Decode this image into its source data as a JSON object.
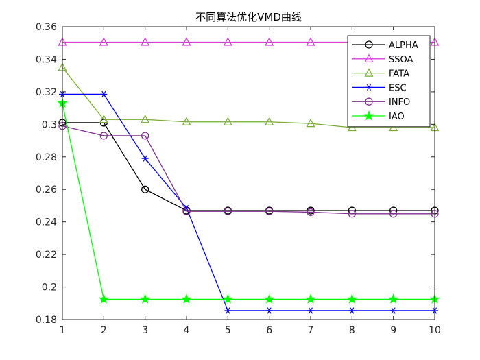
{
  "chart_data": {
    "type": "line",
    "title": "不同算法优化VMD曲线",
    "xlabel": "",
    "ylabel": "",
    "xlim": [
      1,
      10
    ],
    "ylim": [
      0.18,
      0.36
    ],
    "x": [
      1,
      2,
      3,
      4,
      5,
      6,
      7,
      8,
      9,
      10
    ],
    "xticks": [
      "1",
      "2",
      "3",
      "4",
      "5",
      "6",
      "7",
      "8",
      "9",
      "10"
    ],
    "yticks": [
      "0.18",
      "0.2",
      "0.22",
      "0.24",
      "0.26",
      "0.28",
      "0.3",
      "0.32",
      "0.34",
      "0.36"
    ],
    "grid": false,
    "legend_position": "top-right",
    "series": [
      {
        "name": "ALPHA",
        "color": "#000000",
        "marker": "circle",
        "values": [
          0.301,
          0.301,
          0.26,
          0.247,
          0.247,
          0.247,
          0.247,
          0.247,
          0.247,
          0.247
        ]
      },
      {
        "name": "SSOA",
        "color": "#d63fd6",
        "marker": "triangle",
        "values": [
          0.3505,
          0.3505,
          0.3505,
          0.3505,
          0.3505,
          0.3505,
          0.3505,
          0.3505,
          0.3505,
          0.3505
        ]
      },
      {
        "name": "FATA",
        "color": "#77ac30",
        "marker": "triangle",
        "values": [
          0.335,
          0.303,
          0.303,
          0.3015,
          0.3015,
          0.3015,
          0.3005,
          0.298,
          0.298,
          0.298
        ]
      },
      {
        "name": "ESC",
        "color": "#0000ff",
        "marker": "asterisk",
        "values": [
          0.3185,
          0.3185,
          0.279,
          0.2485,
          0.1855,
          0.1855,
          0.1855,
          0.1855,
          0.1855,
          0.1855
        ]
      },
      {
        "name": "INFO",
        "color": "#7e2f8e",
        "marker": "circle",
        "values": [
          0.299,
          0.293,
          0.293,
          0.2465,
          0.2465,
          0.2465,
          0.246,
          0.245,
          0.245,
          0.245
        ]
      },
      {
        "name": "IAO",
        "color": "#00ff00",
        "marker": "star",
        "values": [
          0.313,
          0.1925,
          0.1925,
          0.1925,
          0.1925,
          0.1925,
          0.1925,
          0.1925,
          0.1925,
          0.1925
        ]
      }
    ]
  }
}
